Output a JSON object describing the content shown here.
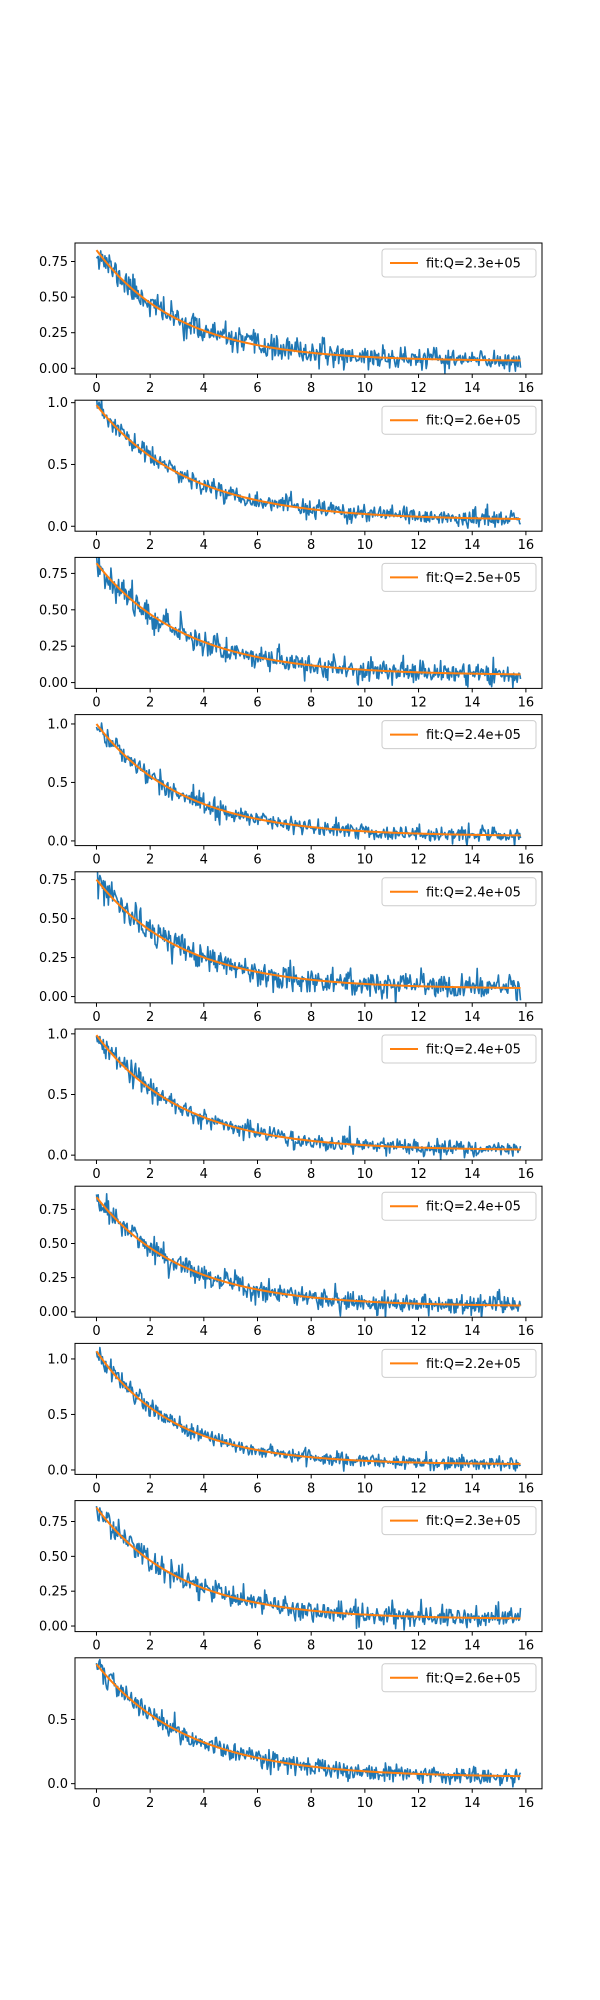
{
  "chart_data": [
    {
      "type": "line",
      "xlim": [
        -0.8,
        16.6
      ],
      "ylim": [
        -0.04,
        0.88
      ],
      "yticks": [
        0.0,
        0.25,
        0.5,
        0.75
      ],
      "ytick_labels": [
        "0.00",
        "0.25",
        "0.50",
        "0.75"
      ],
      "xticks": [
        0,
        2,
        4,
        6,
        8,
        10,
        12,
        14,
        16
      ],
      "xtick_labels": [
        "0",
        "2",
        "4",
        "6",
        "8",
        "10",
        "12",
        "14",
        "16"
      ],
      "series": [
        {
          "name": "",
          "color": "#1f77b4",
          "model": {
            "amp": 0.78,
            "tau": 3.1,
            "offset": 0.05,
            "noise": 0.05,
            "seed": 11
          }
        },
        {
          "name": "fit:Q=2.3e+05",
          "color": "#ff7f0e",
          "model": {
            "amp": 0.78,
            "tau": 3.1,
            "offset": 0.05
          }
        }
      ],
      "legend": {
        "position": "top-right",
        "label": "fit:Q=2.3e+05"
      },
      "grid": false
    },
    {
      "type": "line",
      "xlim": [
        -0.8,
        16.6
      ],
      "ylim": [
        -0.04,
        1.02
      ],
      "yticks": [
        0.0,
        0.5,
        1.0
      ],
      "ytick_labels": [
        "0.0",
        "0.5",
        "1.0"
      ],
      "xticks": [
        0,
        2,
        4,
        6,
        8,
        10,
        12,
        14,
        16
      ],
      "xtick_labels": [
        "0",
        "2",
        "4",
        "6",
        "8",
        "10",
        "12",
        "14",
        "16"
      ],
      "series": [
        {
          "name": "",
          "color": "#1f77b4",
          "model": {
            "amp": 0.93,
            "tau": 3.4,
            "offset": 0.05,
            "noise": 0.045,
            "seed": 23
          }
        },
        {
          "name": "fit:Q=2.6e+05",
          "color": "#ff7f0e",
          "model": {
            "amp": 0.93,
            "tau": 3.4,
            "offset": 0.05
          }
        }
      ],
      "legend": {
        "position": "top-right",
        "label": "fit:Q=2.6e+05"
      },
      "grid": false
    },
    {
      "type": "line",
      "xlim": [
        -0.8,
        16.6
      ],
      "ylim": [
        -0.04,
        0.86
      ],
      "yticks": [
        0.0,
        0.25,
        0.5,
        0.75
      ],
      "ytick_labels": [
        "0.00",
        "0.25",
        "0.50",
        "0.75"
      ],
      "xticks": [
        0,
        2,
        4,
        6,
        8,
        10,
        12,
        14,
        16
      ],
      "xtick_labels": [
        "0",
        "2",
        "4",
        "6",
        "8",
        "10",
        "12",
        "14",
        "16"
      ],
      "series": [
        {
          "name": "",
          "color": "#1f77b4",
          "model": {
            "amp": 0.77,
            "tau": 3.3,
            "offset": 0.05,
            "noise": 0.05,
            "seed": 37
          }
        },
        {
          "name": "fit:Q=2.5e+05",
          "color": "#ff7f0e",
          "model": {
            "amp": 0.77,
            "tau": 3.3,
            "offset": 0.05
          }
        }
      ],
      "legend": {
        "position": "top-right",
        "label": "fit:Q=2.5e+05"
      },
      "grid": false
    },
    {
      "type": "line",
      "xlim": [
        -0.8,
        16.6
      ],
      "ylim": [
        -0.04,
        1.08
      ],
      "yticks": [
        0.0,
        0.5,
        1.0
      ],
      "ytick_labels": [
        "0.0",
        "0.5",
        "1.0"
      ],
      "xticks": [
        0,
        2,
        4,
        6,
        8,
        10,
        12,
        14,
        16
      ],
      "xtick_labels": [
        "0",
        "2",
        "4",
        "6",
        "8",
        "10",
        "12",
        "14",
        "16"
      ],
      "series": [
        {
          "name": "",
          "color": "#1f77b4",
          "model": {
            "amp": 0.96,
            "tau": 3.2,
            "offset": 0.04,
            "noise": 0.045,
            "seed": 41
          }
        },
        {
          "name": "fit:Q=2.4e+05",
          "color": "#ff7f0e",
          "model": {
            "amp": 0.96,
            "tau": 3.2,
            "offset": 0.04
          }
        }
      ],
      "legend": {
        "position": "top-right",
        "label": "fit:Q=2.4e+05"
      },
      "grid": false
    },
    {
      "type": "line",
      "xlim": [
        -0.8,
        16.6
      ],
      "ylim": [
        -0.04,
        0.8
      ],
      "yticks": [
        0.0,
        0.25,
        0.5,
        0.75
      ],
      "ytick_labels": [
        "0.00",
        "0.25",
        "0.50",
        "0.75"
      ],
      "xticks": [
        0,
        2,
        4,
        6,
        8,
        10,
        12,
        14,
        16
      ],
      "xtick_labels": [
        "0",
        "2",
        "4",
        "6",
        "8",
        "10",
        "12",
        "14",
        "16"
      ],
      "series": [
        {
          "name": "",
          "color": "#1f77b4",
          "model": {
            "amp": 0.7,
            "tau": 3.2,
            "offset": 0.05,
            "noise": 0.05,
            "seed": 53
          }
        },
        {
          "name": "fit:Q=2.4e+05",
          "color": "#ff7f0e",
          "model": {
            "amp": 0.7,
            "tau": 3.2,
            "offset": 0.05
          }
        }
      ],
      "legend": {
        "position": "top-right",
        "label": "fit:Q=2.4e+05"
      },
      "grid": false
    },
    {
      "type": "line",
      "xlim": [
        -0.8,
        16.6
      ],
      "ylim": [
        -0.04,
        1.04
      ],
      "yticks": [
        0.0,
        0.5,
        1.0
      ],
      "ytick_labels": [
        "0.0",
        "0.5",
        "1.0"
      ],
      "xticks": [
        0,
        2,
        4,
        6,
        8,
        10,
        12,
        14,
        16
      ],
      "xtick_labels": [
        "0",
        "2",
        "4",
        "6",
        "8",
        "10",
        "12",
        "14",
        "16"
      ],
      "series": [
        {
          "name": "",
          "color": "#1f77b4",
          "model": {
            "amp": 0.95,
            "tau": 3.2,
            "offset": 0.04,
            "noise": 0.045,
            "seed": 67
          }
        },
        {
          "name": "fit:Q=2.4e+05",
          "color": "#ff7f0e",
          "model": {
            "amp": 0.95,
            "tau": 3.2,
            "offset": 0.04
          }
        }
      ],
      "legend": {
        "position": "top-right",
        "label": "fit:Q=2.4e+05"
      },
      "grid": false
    },
    {
      "type": "line",
      "xlim": [
        -0.8,
        16.6
      ],
      "ylim": [
        -0.04,
        0.92
      ],
      "yticks": [
        0.0,
        0.25,
        0.5,
        0.75
      ],
      "ytick_labels": [
        "0.00",
        "0.25",
        "0.50",
        "0.75"
      ],
      "xticks": [
        0,
        2,
        4,
        6,
        8,
        10,
        12,
        14,
        16
      ],
      "xtick_labels": [
        "0",
        "2",
        "4",
        "6",
        "8",
        "10",
        "12",
        "14",
        "16"
      ],
      "series": [
        {
          "name": "",
          "color": "#1f77b4",
          "model": {
            "amp": 0.8,
            "tau": 3.2,
            "offset": 0.04,
            "noise": 0.05,
            "seed": 71
          }
        },
        {
          "name": "fit:Q=2.4e+05",
          "color": "#ff7f0e",
          "model": {
            "amp": 0.8,
            "tau": 3.2,
            "offset": 0.04
          }
        }
      ],
      "legend": {
        "position": "top-right",
        "label": "fit:Q=2.4e+05"
      },
      "grid": false
    },
    {
      "type": "line",
      "xlim": [
        -0.8,
        16.6
      ],
      "ylim": [
        -0.04,
        1.14
      ],
      "yticks": [
        0.0,
        0.5,
        1.0
      ],
      "ytick_labels": [
        "0.0",
        "0.5",
        "1.0"
      ],
      "xticks": [
        0,
        2,
        4,
        6,
        8,
        10,
        12,
        14,
        16
      ],
      "xtick_labels": [
        "0",
        "2",
        "4",
        "6",
        "8",
        "10",
        "12",
        "14",
        "16"
      ],
      "series": [
        {
          "name": "",
          "color": "#1f77b4",
          "model": {
            "amp": 1.02,
            "tau": 2.9,
            "offset": 0.05,
            "noise": 0.045,
            "seed": 83
          }
        },
        {
          "name": "fit:Q=2.2e+05",
          "color": "#ff7f0e",
          "model": {
            "amp": 1.02,
            "tau": 2.9,
            "offset": 0.05
          }
        }
      ],
      "legend": {
        "position": "top-right",
        "label": "fit:Q=2.2e+05"
      },
      "grid": false
    },
    {
      "type": "line",
      "xlim": [
        -0.8,
        16.6
      ],
      "ylim": [
        -0.04,
        0.9
      ],
      "yticks": [
        0.0,
        0.25,
        0.5,
        0.75
      ],
      "ytick_labels": [
        "0.00",
        "0.25",
        "0.50",
        "0.75"
      ],
      "xticks": [
        0,
        2,
        4,
        6,
        8,
        10,
        12,
        14,
        16
      ],
      "xtick_labels": [
        "0",
        "2",
        "4",
        "6",
        "8",
        "10",
        "12",
        "14",
        "16"
      ],
      "series": [
        {
          "name": "",
          "color": "#1f77b4",
          "model": {
            "amp": 0.8,
            "tau": 3.1,
            "offset": 0.05,
            "noise": 0.05,
            "seed": 97
          }
        },
        {
          "name": "fit:Q=2.3e+05",
          "color": "#ff7f0e",
          "model": {
            "amp": 0.8,
            "tau": 3.1,
            "offset": 0.05
          }
        }
      ],
      "legend": {
        "position": "top-right",
        "label": "fit:Q=2.3e+05"
      },
      "grid": false
    },
    {
      "type": "line",
      "xlim": [
        -0.8,
        16.6
      ],
      "ylim": [
        -0.04,
        0.98
      ],
      "yticks": [
        0.0,
        0.5
      ],
      "ytick_labels": [
        "0.0",
        "0.5"
      ],
      "xticks": [
        0,
        2,
        4,
        6,
        8,
        10,
        12,
        14,
        16
      ],
      "xtick_labels": [
        "0",
        "2",
        "4",
        "6",
        "8",
        "10",
        "12",
        "14",
        "16"
      ],
      "series": [
        {
          "name": "",
          "color": "#1f77b4",
          "model": {
            "amp": 0.88,
            "tau": 3.4,
            "offset": 0.05,
            "noise": 0.045,
            "seed": 101
          }
        },
        {
          "name": "fit:Q=2.6e+05",
          "color": "#ff7f0e",
          "model": {
            "amp": 0.88,
            "tau": 3.4,
            "offset": 0.05
          }
        }
      ],
      "legend": {
        "position": "top-right",
        "label": "fit:Q=2.6e+05"
      },
      "grid": false
    }
  ]
}
